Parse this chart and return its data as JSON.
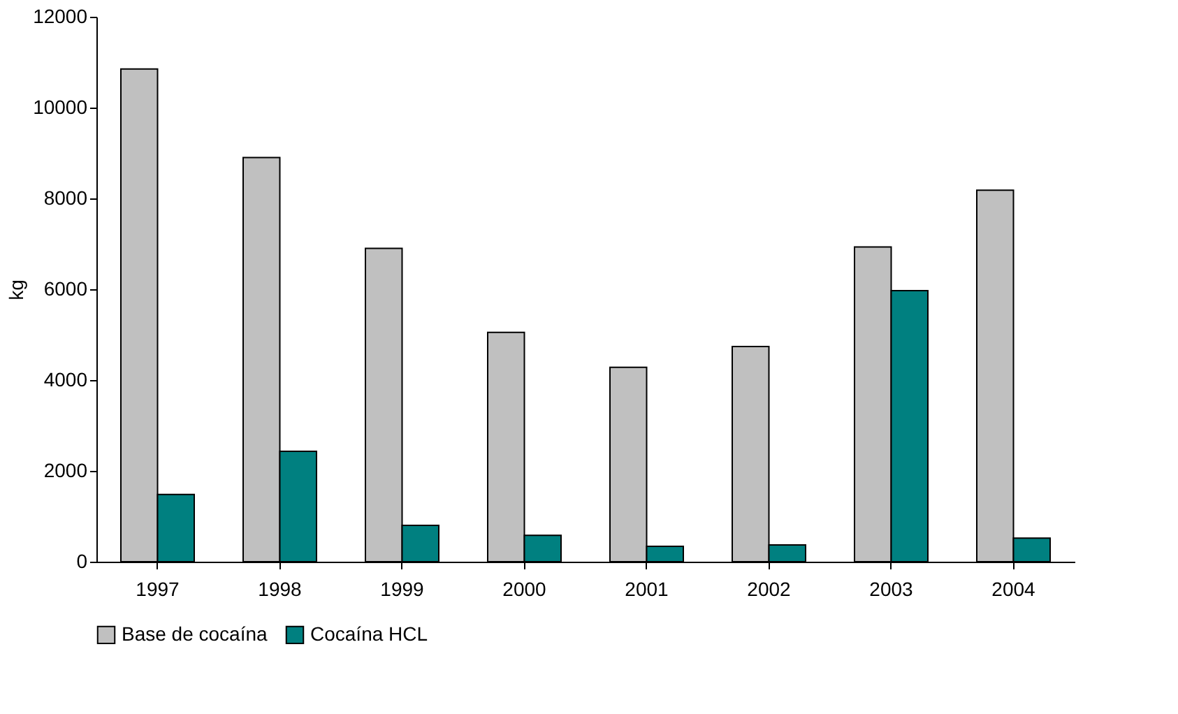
{
  "chart_data": {
    "type": "bar",
    "ylabel": "kg",
    "categories": [
      "1997",
      "1998",
      "1999",
      "2000",
      "2001",
      "2002",
      "2003",
      "2004"
    ],
    "series": [
      {
        "name": "Base de cocaína",
        "color": "#c0c0c0",
        "values": [
          10850,
          8900,
          6900,
          5050,
          4280,
          4740,
          6930,
          8180
        ]
      },
      {
        "name": "Cocaína HCL",
        "color": "#008080",
        "values": [
          1480,
          2430,
          800,
          580,
          340,
          370,
          5970,
          520
        ]
      }
    ],
    "ylim": [
      0,
      12000
    ],
    "yticks": [
      0,
      2000,
      4000,
      6000,
      8000,
      10000,
      12000
    ],
    "grid": false,
    "legend": "bottom"
  }
}
